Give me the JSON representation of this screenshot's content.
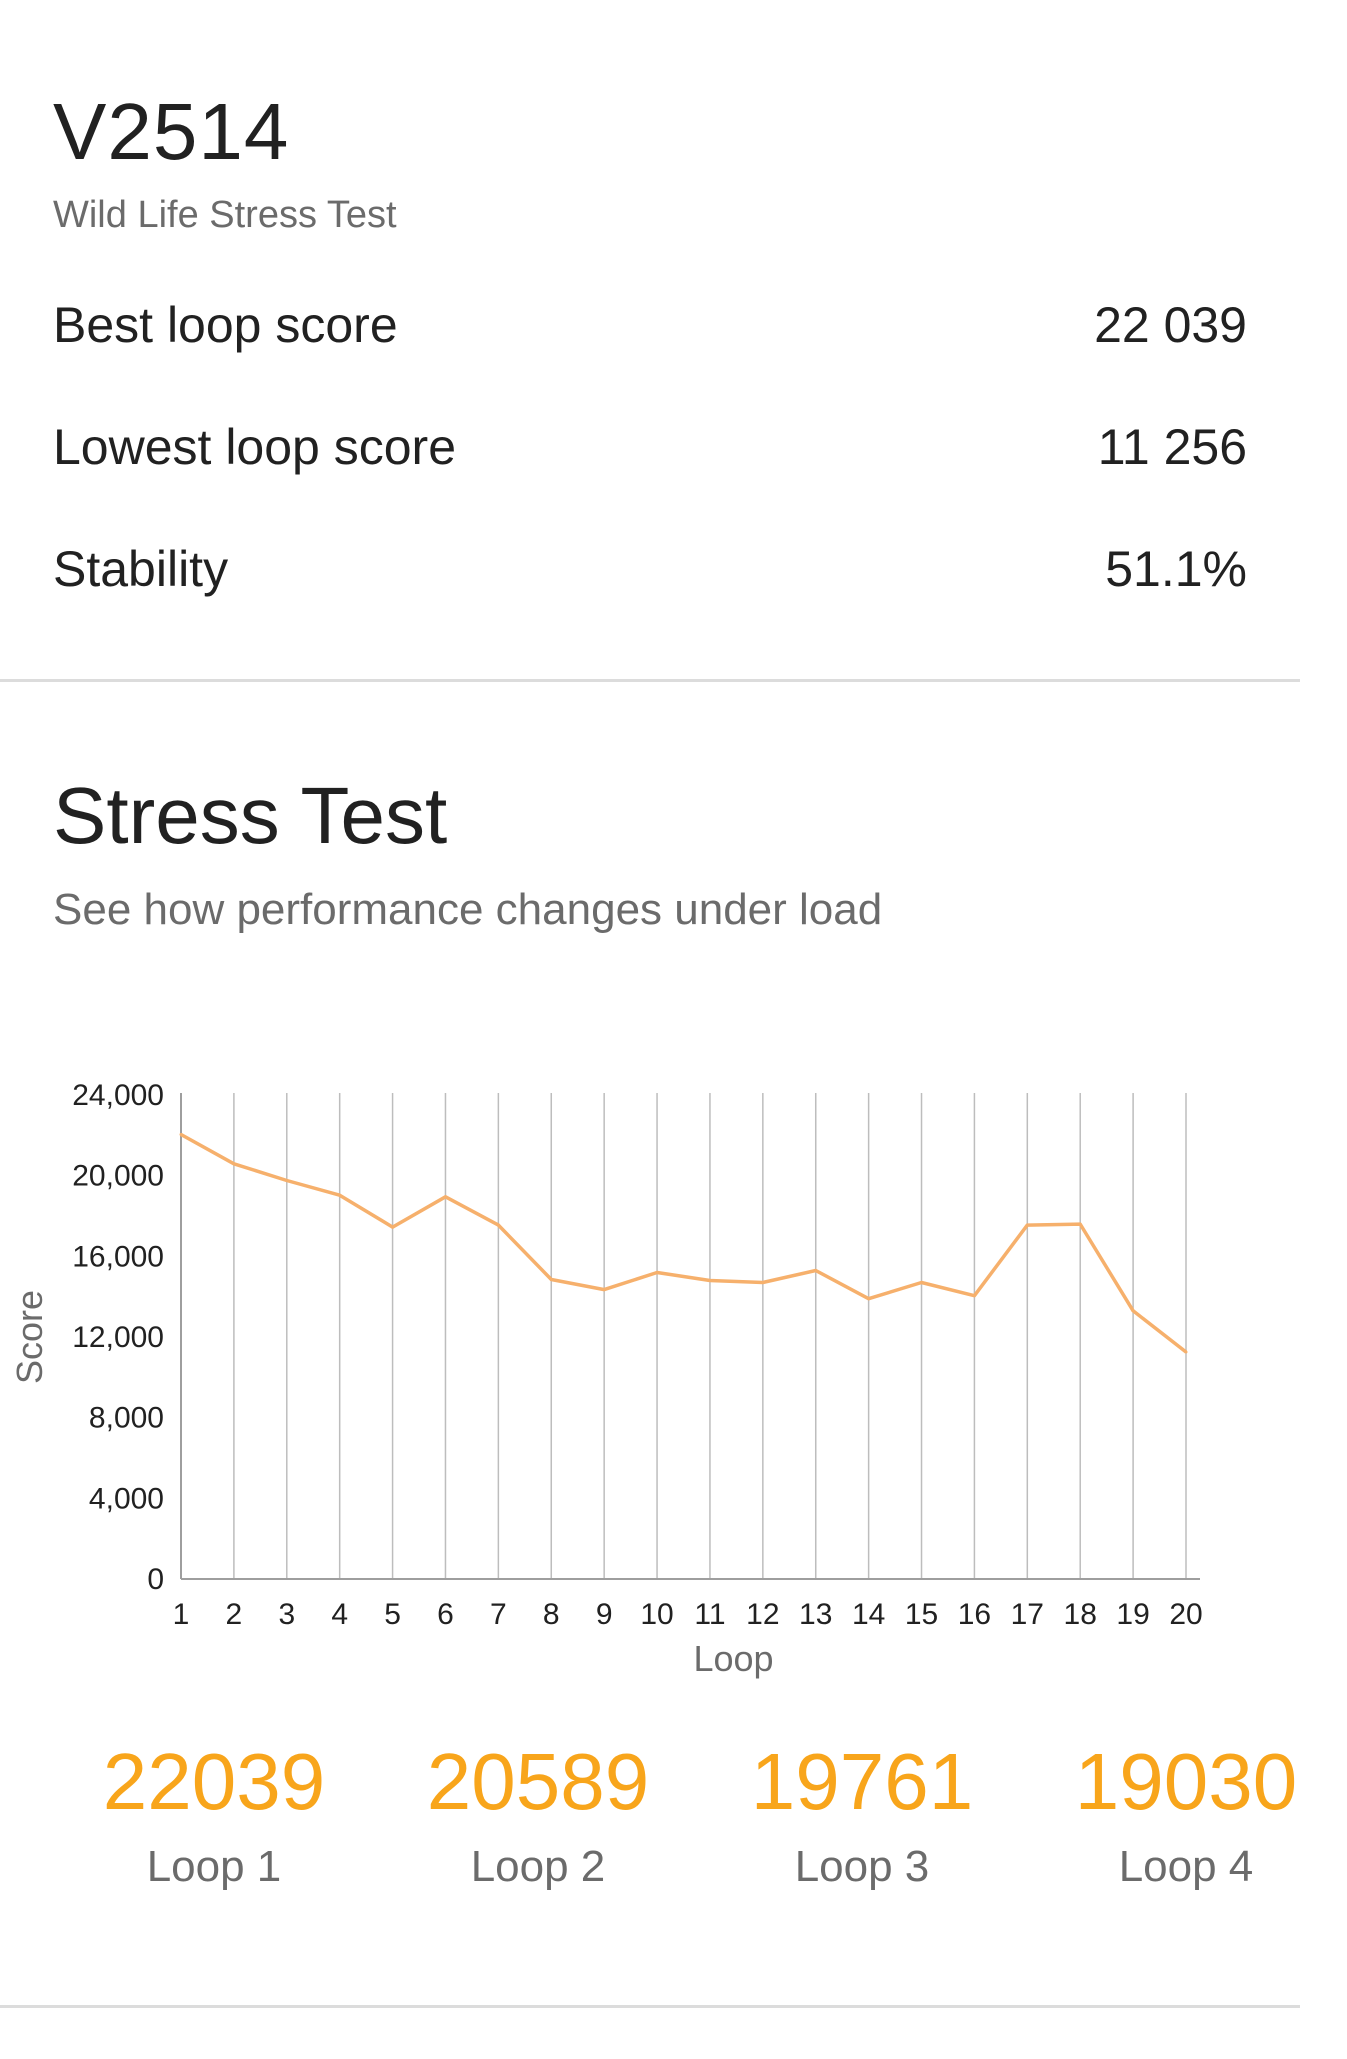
{
  "header": {
    "device_name": "V2514",
    "test_name": "Wild Life Stress Test"
  },
  "stats": [
    {
      "label": "Best loop score",
      "value": "22 039"
    },
    {
      "label": "Lowest loop score",
      "value": "11 256"
    },
    {
      "label": "Stability",
      "value": "51.1%"
    }
  ],
  "section": {
    "title": "Stress Test",
    "subtitle": "See how performance changes under load"
  },
  "colors": {
    "accent": "#f8a51b",
    "line": "#f6b06c",
    "grid": "#bdbdbd",
    "text_secondary": "#6b6b6b"
  },
  "chart_data": {
    "type": "line",
    "xlabel": "Loop",
    "ylabel": "Score",
    "x": [
      1,
      2,
      3,
      4,
      5,
      6,
      7,
      8,
      9,
      10,
      11,
      12,
      13,
      14,
      15,
      16,
      17,
      18,
      19,
      20
    ],
    "ylim": [
      0,
      24000
    ],
    "yticks": [
      0,
      4000,
      8000,
      12000,
      16000,
      20000,
      24000
    ],
    "ytick_labels": [
      "0",
      "4,000",
      "8,000",
      "12,000",
      "16,000",
      "20,000",
      "24,000"
    ],
    "series": [
      {
        "values": [
          22039,
          20589,
          19761,
          19030,
          17450,
          18950,
          17550,
          14850,
          14350,
          15200,
          14800,
          14700,
          15300,
          13900,
          14700,
          14050,
          17550,
          17600,
          13300,
          11256
        ]
      }
    ],
    "grid": "vertical"
  },
  "loops": [
    {
      "score": "22039",
      "label": "Loop 1"
    },
    {
      "score": "20589",
      "label": "Loop 2"
    },
    {
      "score": "19761",
      "label": "Loop 3"
    },
    {
      "score": "19030",
      "label": "Loop 4"
    }
  ]
}
